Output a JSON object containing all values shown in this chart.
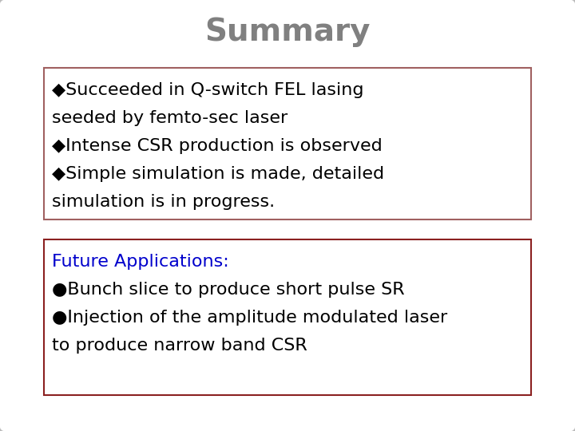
{
  "title": "Summary",
  "title_color": "#808080",
  "title_fontsize": 28,
  "title_fontweight": "bold",
  "background_color": "#ffffff",
  "box1_lines": [
    "◆Succeeded in Q-switch FEL lasing",
    "seeded by femto-sec laser",
    "◆Intense CSR production is observed",
    "◆Simple simulation is made, detailed",
    "simulation is in progress."
  ],
  "box1_color": "#000000",
  "box1_border": "#a06060",
  "box1_bg": "#ffffff",
  "box2_header": "Future Applications:",
  "box2_header_color": "#0000cc",
  "box2_lines": [
    "●Bunch slice to produce short pulse SR",
    "●Injection of the amplitude modulated laser",
    "to produce narrow band CSR"
  ],
  "box2_color": "#000000",
  "box2_border": "#8b2020",
  "box2_bg": "#ffffff",
  "text_fontsize": 16,
  "outer_border_color": "#bbbbbb",
  "outer_bg": "#ffffff"
}
